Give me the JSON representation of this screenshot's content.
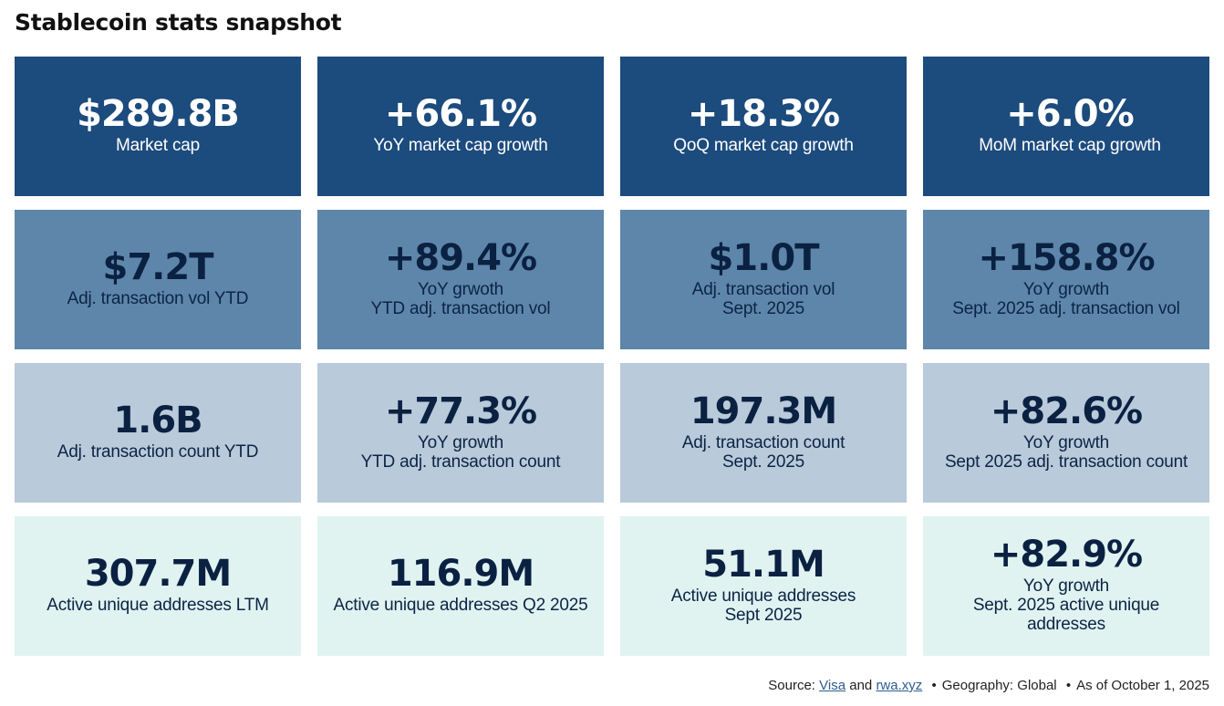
{
  "title": "Stablecoin stats snapshot",
  "cards": [
    {
      "value": "$289.8B",
      "line1": "Market cap",
      "line2": ""
    },
    {
      "value": "+66.1%",
      "line1": "YoY market cap growth",
      "line2": ""
    },
    {
      "value": "+18.3%",
      "line1": "QoQ  market cap growth",
      "line2": ""
    },
    {
      "value": "+6.0%",
      "line1": "MoM  market cap growth",
      "line2": ""
    },
    {
      "value": "$7.2T",
      "line1": "Adj. transaction vol YTD",
      "line2": ""
    },
    {
      "value": "+89.4%",
      "line1": "YoY grwoth",
      "line2": "YTD adj. transaction vol"
    },
    {
      "value": "$1.0T",
      "line1": "Adj. transaction vol",
      "line2": "Sept. 2025"
    },
    {
      "value": "+158.8%",
      "line1": "YoY growth",
      "line2": "Sept. 2025 adj. transaction vol"
    },
    {
      "value": "1.6B",
      "line1": "Adj. transaction count YTD",
      "line2": ""
    },
    {
      "value": "+77.3%",
      "line1": "YoY growth",
      "line2": "YTD adj. transaction count"
    },
    {
      "value": "197.3M",
      "line1": "Adj. transaction count",
      "line2": "Sept. 2025"
    },
    {
      "value": "+82.6%",
      "line1": "YoY growth",
      "line2": "Sept 2025 adj. transaction count"
    },
    {
      "value": "307.7M",
      "line1": "Active unique addresses LTM",
      "line2": ""
    },
    {
      "value": "116.9M",
      "line1": "Active unique addresses Q2 2025",
      "line2": ""
    },
    {
      "value": "51.1M",
      "line1": "Active unique addresses",
      "line2": "Sept 2025"
    },
    {
      "value": "+82.9%",
      "line1": "YoY growth",
      "line2": "Sept. 2025 active unique addresses"
    }
  ],
  "footer": {
    "source_prefix": "Source: ",
    "link1": "Visa",
    "and": " and ",
    "link2": "rwa.xyz",
    "bullet": "•",
    "geography": "Geography: Global",
    "as_of": "As of October 1, 2025"
  },
  "colors": {
    "row0_bg": "#1c4b7d",
    "row1_bg": "#5d86aa",
    "row2_bg": "#b9cada",
    "row3_bg": "#e0f3f1",
    "link": "#2c5d8f"
  }
}
